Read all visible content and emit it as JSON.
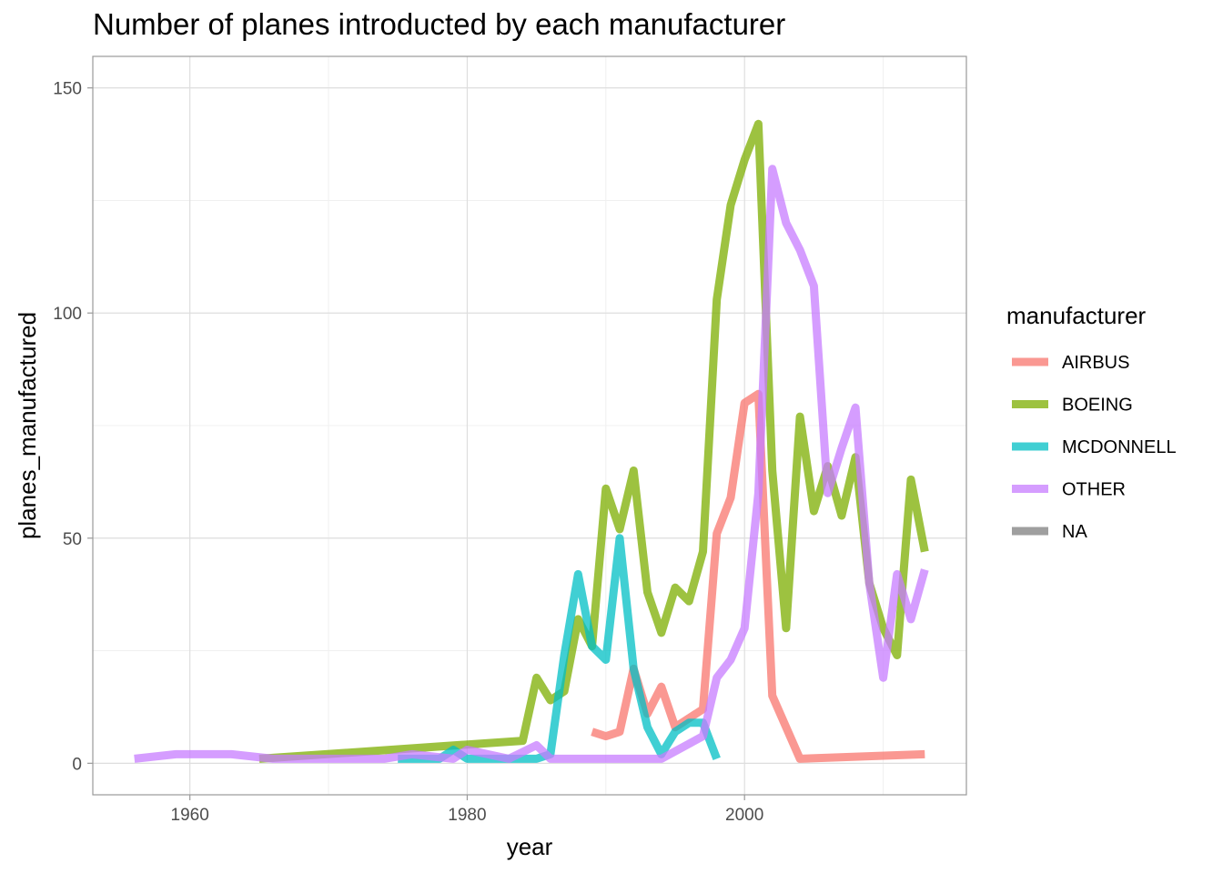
{
  "chart_data": {
    "type": "line",
    "title": "Number of planes introducted by each manufacturer",
    "xlabel": "year",
    "ylabel": "planes_manufactured",
    "xlim": [
      1953,
      2016
    ],
    "ylim": [
      -7,
      157
    ],
    "x_ticks": [
      1960,
      1980,
      2000
    ],
    "y_ticks": [
      0,
      50,
      100,
      150
    ],
    "grid": true,
    "legend": {
      "title": "manufacturer",
      "position": "right"
    },
    "series": [
      {
        "name": "AIRBUS",
        "color": "#F8766D",
        "x": [
          1989,
          1990,
          1991,
          1992,
          1993,
          1994,
          1995,
          1996,
          1997,
          1998,
          1999,
          2000,
          2001,
          2002,
          2004,
          2013
        ],
        "y": [
          7,
          6,
          7,
          21,
          11,
          17,
          8,
          10,
          12,
          51,
          59,
          80,
          82,
          15,
          1,
          2
        ]
      },
      {
        "name": "BOEING",
        "color": "#7CAE00",
        "x": [
          1965,
          1984,
          1985,
          1986,
          1987,
          1988,
          1989,
          1990,
          1991,
          1992,
          1993,
          1994,
          1995,
          1996,
          1997,
          1998,
          1999,
          2000,
          2001,
          2002,
          2003,
          2004,
          2005,
          2006,
          2007,
          2008,
          2009,
          2010,
          2011,
          2012,
          2013
        ],
        "y": [
          1,
          5,
          19,
          14,
          16,
          32,
          26,
          61,
          52,
          65,
          38,
          29,
          39,
          36,
          47,
          103,
          124,
          134,
          142,
          65,
          30,
          77,
          56,
          66,
          55,
          68,
          40,
          30,
          24,
          63,
          47
        ]
      },
      {
        "name": "MCDONNELL",
        "color": "#00BFC4",
        "x": [
          1975,
          1976,
          1977,
          1978,
          1979,
          1980,
          1983,
          1984,
          1985,
          1986,
          1987,
          1988,
          1989,
          1990,
          1991,
          1992,
          1993,
          1994,
          1995,
          1996,
          1997,
          1998
        ],
        "y": [
          1,
          1,
          1,
          1,
          3,
          1,
          1,
          1,
          1,
          2,
          24,
          42,
          26,
          23,
          50,
          21,
          8,
          2,
          7,
          9,
          9,
          1
        ]
      },
      {
        "name": "OTHER",
        "color": "#C77CFF",
        "x": [
          1956,
          1959,
          1963,
          1966,
          1974,
          1976,
          1979,
          1980,
          1983,
          1985,
          1986,
          1994,
          1997,
          1998,
          1999,
          2000,
          2001,
          2002,
          2003,
          2004,
          2005,
          2006,
          2007,
          2008,
          2009,
          2010,
          2011,
          2012,
          2013
        ],
        "y": [
          1,
          2,
          2,
          1,
          1,
          2,
          1,
          3,
          1,
          4,
          1,
          1,
          6,
          19,
          23,
          30,
          60,
          132,
          120,
          114,
          106,
          60,
          70,
          79,
          40,
          19,
          42,
          32,
          43
        ]
      },
      {
        "name": "NA",
        "color": "#7F7F7F",
        "x": [],
        "y": []
      }
    ]
  }
}
